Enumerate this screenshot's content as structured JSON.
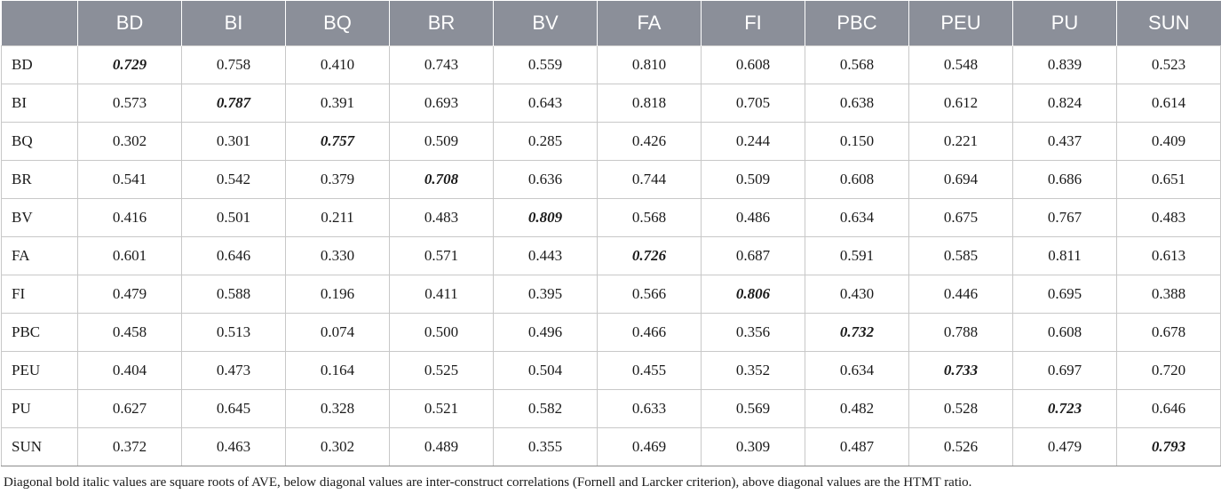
{
  "table": {
    "corner": "",
    "columns": [
      "BD",
      "BI",
      "BQ",
      "BR",
      "BV",
      "FA",
      "FI",
      "PBC",
      "PEU",
      "PU",
      "SUN"
    ],
    "rows": [
      {
        "label": "BD",
        "values": [
          "0.729",
          "0.758",
          "0.410",
          "0.743",
          "0.559",
          "0.810",
          "0.608",
          "0.568",
          "0.548",
          "0.839",
          "0.523"
        ]
      },
      {
        "label": "BI",
        "values": [
          "0.573",
          "0.787",
          "0.391",
          "0.693",
          "0.643",
          "0.818",
          "0.705",
          "0.638",
          "0.612",
          "0.824",
          "0.614"
        ]
      },
      {
        "label": "BQ",
        "values": [
          "0.302",
          "0.301",
          "0.757",
          "0.509",
          "0.285",
          "0.426",
          "0.244",
          "0.150",
          "0.221",
          "0.437",
          "0.409"
        ]
      },
      {
        "label": "BR",
        "values": [
          "0.541",
          "0.542",
          "0.379",
          "0.708",
          "0.636",
          "0.744",
          "0.509",
          "0.608",
          "0.694",
          "0.686",
          "0.651"
        ]
      },
      {
        "label": "BV",
        "values": [
          "0.416",
          "0.501",
          "0.211",
          "0.483",
          "0.809",
          "0.568",
          "0.486",
          "0.634",
          "0.675",
          "0.767",
          "0.483"
        ]
      },
      {
        "label": "FA",
        "values": [
          "0.601",
          "0.646",
          "0.330",
          "0.571",
          "0.443",
          "0.726",
          "0.687",
          "0.591",
          "0.585",
          "0.811",
          "0.613"
        ]
      },
      {
        "label": "FI",
        "values": [
          "0.479",
          "0.588",
          "0.196",
          "0.411",
          "0.395",
          "0.566",
          "0.806",
          "0.430",
          "0.446",
          "0.695",
          "0.388"
        ]
      },
      {
        "label": "PBC",
        "values": [
          "0.458",
          "0.513",
          "0.074",
          "0.500",
          "0.496",
          "0.466",
          "0.356",
          "0.732",
          "0.788",
          "0.608",
          "0.678"
        ]
      },
      {
        "label": "PEU",
        "values": [
          "0.404",
          "0.473",
          "0.164",
          "0.525",
          "0.504",
          "0.455",
          "0.352",
          "0.634",
          "0.733",
          "0.697",
          "0.720"
        ]
      },
      {
        "label": "PU",
        "values": [
          "0.627",
          "0.645",
          "0.328",
          "0.521",
          "0.582",
          "0.633",
          "0.569",
          "0.482",
          "0.528",
          "0.723",
          "0.646"
        ]
      },
      {
        "label": "SUN",
        "values": [
          "0.372",
          "0.463",
          "0.302",
          "0.489",
          "0.355",
          "0.469",
          "0.309",
          "0.487",
          "0.526",
          "0.479",
          "0.793"
        ]
      }
    ]
  },
  "note": "Diagonal bold italic values are square roots of AVE, below diagonal values are inter-construct correlations (Fornell and Larcker criterion), above diagonal values are the HTMT ratio.",
  "colors": {
    "header_bg": "#8b8f99",
    "header_text": "#ffffff",
    "grid": "#c8c8c8"
  }
}
